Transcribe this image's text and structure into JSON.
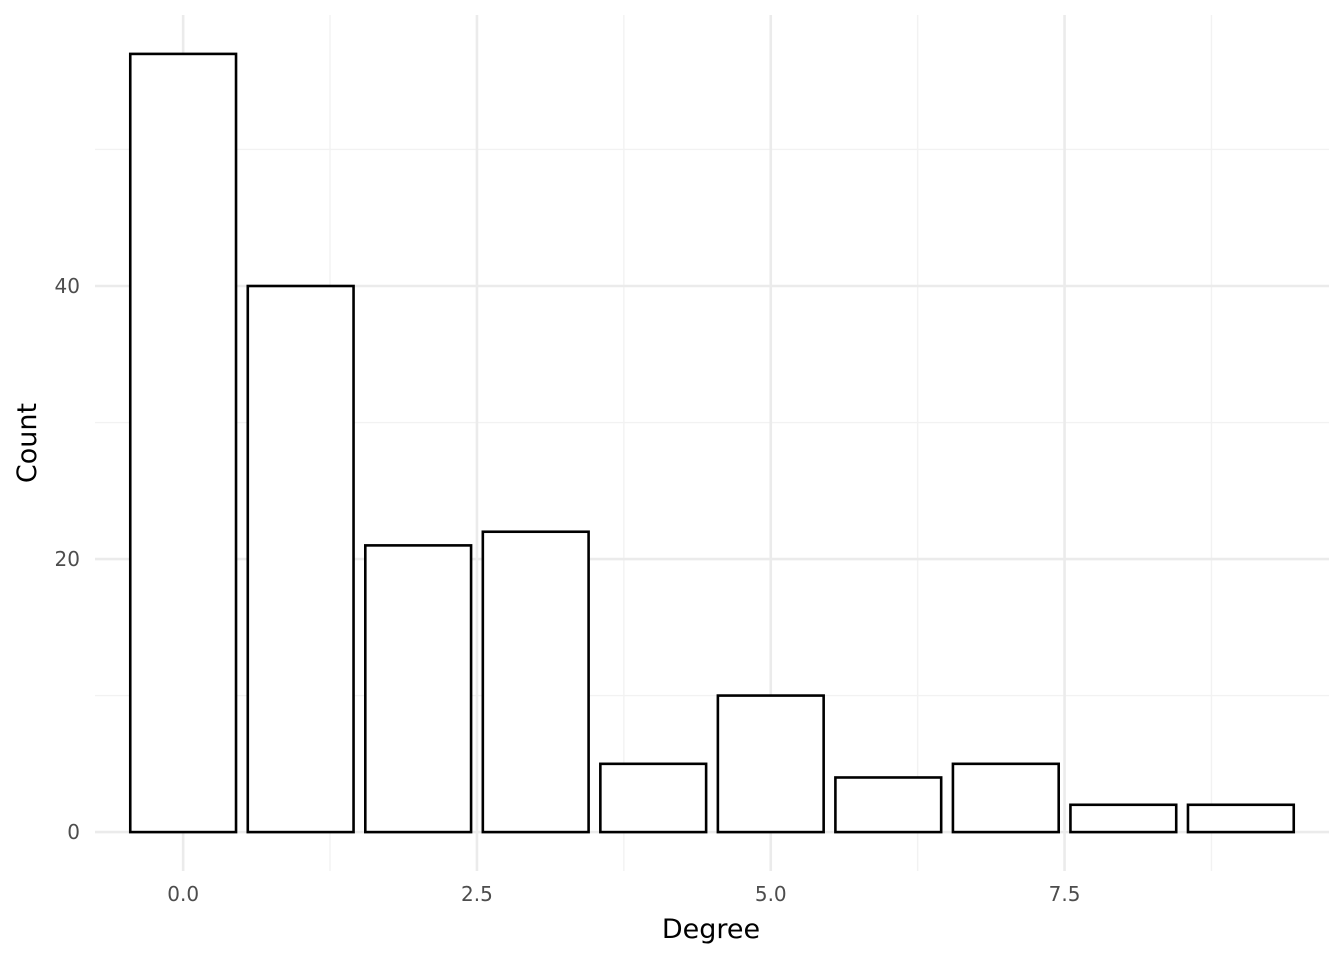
{
  "chart_data": {
    "type": "bar",
    "title": "",
    "xlabel": "Degree",
    "ylabel": "Count",
    "x": [
      0,
      1,
      2,
      3,
      4,
      5,
      6,
      7,
      8,
      9
    ],
    "values": [
      57,
      40,
      21,
      22,
      5,
      10,
      4,
      5,
      2,
      2
    ],
    "xlim": [
      -0.75,
      9.75
    ],
    "ylim": [
      -2.85,
      59.85
    ],
    "x_ticks": [
      0.0,
      2.5,
      5.0,
      7.5
    ],
    "x_tick_labels": [
      "0.0",
      "2.5",
      "5.0",
      "7.5"
    ],
    "y_ticks": [
      0,
      20,
      40
    ],
    "y_tick_labels": [
      "0",
      "20",
      "40"
    ],
    "grid": true,
    "legend": "none",
    "colors": {
      "bar_fill": "#ffffff",
      "bar_stroke": "#000000",
      "grid": "#ebebeb"
    }
  }
}
